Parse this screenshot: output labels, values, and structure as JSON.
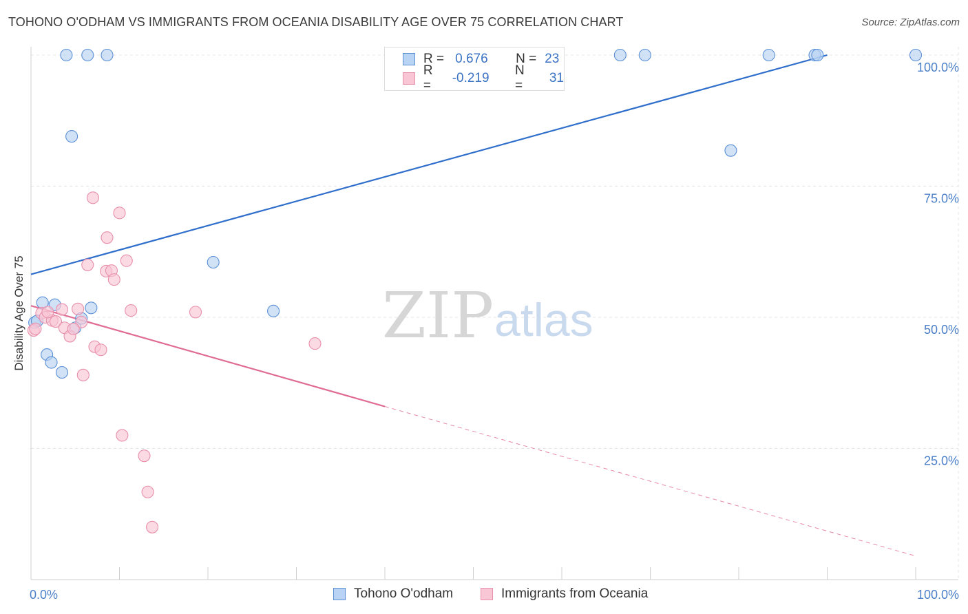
{
  "title": "TOHONO O'ODHAM VS IMMIGRANTS FROM OCEANIA DISABILITY AGE OVER 75 CORRELATION CHART",
  "source": "Source: ZipAtlas.com",
  "watermark": {
    "zip": "ZIP",
    "atlas": "atlas"
  },
  "colors": {
    "blue_fill": "#b8d3f3",
    "blue_stroke": "#5b8fd6",
    "blue_line": "#2f6fcb",
    "pink_fill": "#f9c6d5",
    "pink_stroke": "#e88fab",
    "pink_line": "#e06c95",
    "tick_text": "#4a7fc8",
    "grid": "#e4e4e4"
  },
  "legend": {
    "rows": [
      {
        "r_label": "R =",
        "r_value": "0.676",
        "n_label": "N =",
        "n_value": "23",
        "series": "blue"
      },
      {
        "r_label": "R =",
        "r_value": "-0.219",
        "n_label": "N =",
        "n_value": "31",
        "series": "pink"
      }
    ]
  },
  "chart_data": {
    "type": "scatter",
    "title": "TOHONO O'ODHAM VS IMMIGRANTS FROM OCEANIA DISABILITY AGE OVER 75 CORRELATION CHART",
    "xlabel": "",
    "ylabel": "Disability Age Over 75",
    "xlim": [
      0,
      100
    ],
    "ylim": [
      0,
      100
    ],
    "x_tick_labels": [
      "0.0%",
      "100.0%"
    ],
    "y_tick_values": [
      25,
      50,
      75,
      100
    ],
    "y_tick_labels": [
      "25.0%",
      "50.0%",
      "75.0%",
      "100.0%"
    ],
    "grid": true,
    "series": [
      {
        "name": "Tohono O'odham",
        "color": "blue",
        "points": [
          [
            4.0,
            100.0
          ],
          [
            6.4,
            100.0
          ],
          [
            8.6,
            100.0
          ],
          [
            66.6,
            100.0
          ],
          [
            69.4,
            100.0
          ],
          [
            83.4,
            100.0
          ],
          [
            88.6,
            100.0
          ],
          [
            88.9,
            100.0
          ],
          [
            100.0,
            100.0
          ],
          [
            4.6,
            84.5
          ],
          [
            79.1,
            81.8
          ],
          [
            20.6,
            60.5
          ],
          [
            1.3,
            52.8
          ],
          [
            2.7,
            52.4
          ],
          [
            6.8,
            51.8
          ],
          [
            27.4,
            51.2
          ],
          [
            0.4,
            49.0
          ],
          [
            0.7,
            49.3
          ],
          [
            5.7,
            49.8
          ],
          [
            5.0,
            48.0
          ],
          [
            1.8,
            42.9
          ],
          [
            2.3,
            41.4
          ],
          [
            3.5,
            39.5
          ]
        ],
        "trend": {
          "x1": 0,
          "y1": 58.2,
          "x2": 90,
          "y2": 100.0
        }
      },
      {
        "name": "Immigrants from Oceania",
        "color": "pink",
        "points": [
          [
            7.0,
            72.8
          ],
          [
            10.0,
            69.9
          ],
          [
            8.6,
            65.2
          ],
          [
            10.8,
            60.8
          ],
          [
            6.4,
            60.0
          ],
          [
            8.5,
            58.8
          ],
          [
            9.1,
            58.9
          ],
          [
            9.4,
            57.2
          ],
          [
            5.3,
            51.6
          ],
          [
            11.3,
            51.3
          ],
          [
            18.6,
            51.0
          ],
          [
            3.5,
            51.5
          ],
          [
            1.2,
            50.8
          ],
          [
            1.6,
            50.0
          ],
          [
            2.4,
            49.4
          ],
          [
            2.8,
            49.2
          ],
          [
            5.7,
            49.1
          ],
          [
            0.3,
            47.5
          ],
          [
            0.5,
            47.8
          ],
          [
            3.8,
            48.0
          ],
          [
            4.4,
            46.4
          ],
          [
            32.1,
            45.0
          ],
          [
            7.2,
            44.4
          ],
          [
            7.9,
            43.8
          ],
          [
            5.9,
            39.0
          ],
          [
            10.3,
            27.5
          ],
          [
            12.8,
            23.6
          ],
          [
            13.2,
            16.7
          ],
          [
            13.7,
            10.0
          ],
          [
            4.8,
            47.8
          ],
          [
            1.9,
            51.0
          ]
        ],
        "trend": {
          "x1": 0,
          "y1": 52.2,
          "x2": 40,
          "y2": 33.0
        },
        "trend_dashed": {
          "x1": 40,
          "y1": 33.0,
          "x2": 100,
          "y2": 4.5
        }
      }
    ],
    "legend": [
      "Tohono O'odham",
      "Immigrants from Oceania"
    ]
  }
}
